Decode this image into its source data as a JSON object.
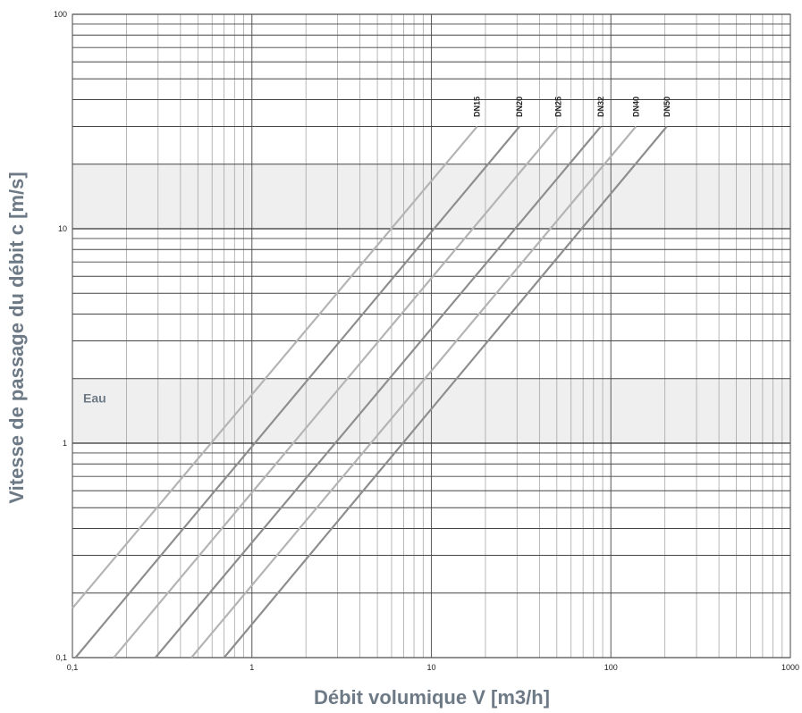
{
  "chart_data": {
    "type": "line",
    "title": "",
    "xlabel": "Débit volumique V [m3/h]",
    "ylabel": "Vitesse de passage du débit c [m/s]",
    "xscale": "log",
    "yscale": "log",
    "xlim": [
      0.1,
      1000
    ],
    "ylim": [
      0.1,
      100
    ],
    "x_ticks": [
      {
        "value": 0.1,
        "label": "0,1"
      },
      {
        "value": 1,
        "label": "1"
      },
      {
        "value": 10,
        "label": "10"
      },
      {
        "value": 100,
        "label": "100"
      },
      {
        "value": 1000,
        "label": "1000"
      }
    ],
    "y_ticks": [
      {
        "value": 0.1,
        "label": "0,1"
      },
      {
        "value": 1,
        "label": "1"
      },
      {
        "value": 10,
        "label": "10"
      },
      {
        "value": 100,
        "label": "100"
      }
    ],
    "grid": true,
    "bands": [
      {
        "label": "",
        "y_range": [
          10,
          20
        ],
        "color": "#efefef"
      },
      {
        "label": "Eau",
        "y_range": [
          1,
          2
        ],
        "color": "#efefef"
      }
    ],
    "series": [
      {
        "name": "DN15",
        "color": "#b4b4b4",
        "points": [
          [
            0.1,
            0.17
          ],
          [
            18,
            30
          ]
        ]
      },
      {
        "name": "DN20",
        "color": "#8e8e8e",
        "points": [
          [
            0.104,
            0.1
          ],
          [
            31,
            30
          ]
        ]
      },
      {
        "name": "DN25",
        "color": "#b4b4b4",
        "points": [
          [
            0.17,
            0.1
          ],
          [
            51,
            30
          ]
        ]
      },
      {
        "name": "DN32",
        "color": "#8e8e8e",
        "points": [
          [
            0.29,
            0.1
          ],
          [
            88,
            30
          ]
        ]
      },
      {
        "name": "DN40",
        "color": "#b4b4b4",
        "points": [
          [
            0.46,
            0.1
          ],
          [
            138,
            30
          ]
        ]
      },
      {
        "name": "DN50",
        "color": "#8e8e8e",
        "points": [
          [
            0.7,
            0.1
          ],
          [
            205,
            30
          ]
        ]
      }
    ]
  }
}
